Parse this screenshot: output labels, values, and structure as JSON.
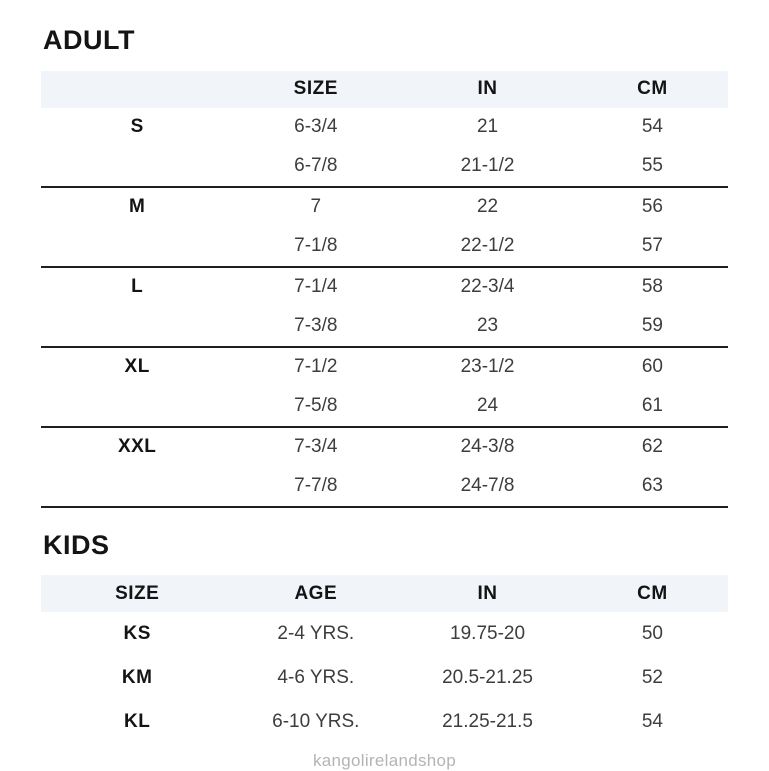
{
  "page": {
    "footer": "kangolirelandshop"
  },
  "colors": {
    "header_band_bg": "#f1f5f9",
    "heading_text": "#141414",
    "body_text": "#3d3d3d",
    "group_divider": "#1f1f1f",
    "footer_text": "#b4b4b4"
  },
  "adult": {
    "title": "ADULT",
    "columns": [
      "",
      "SIZE",
      "IN",
      "CM"
    ],
    "groups": [
      {
        "label": "S",
        "rows": [
          [
            "6-3/4",
            "21",
            "54"
          ],
          [
            "6-7/8",
            "21-1/2",
            "55"
          ]
        ]
      },
      {
        "label": "M",
        "rows": [
          [
            "7",
            "22",
            "56"
          ],
          [
            "7-1/8",
            "22-1/2",
            "57"
          ]
        ]
      },
      {
        "label": "L",
        "rows": [
          [
            "7-1/4",
            "22-3/4",
            "58"
          ],
          [
            "7-3/8",
            "23",
            "59"
          ]
        ]
      },
      {
        "label": "XL",
        "rows": [
          [
            "7-1/2",
            "23-1/2",
            "60"
          ],
          [
            "7-5/8",
            "24",
            "61"
          ]
        ]
      },
      {
        "label": "XXL",
        "rows": [
          [
            "7-3/4",
            "24-3/8",
            "62"
          ],
          [
            "7-7/8",
            "24-7/8",
            "63"
          ]
        ]
      }
    ]
  },
  "kids": {
    "title": "KIDS",
    "columns": [
      "SIZE",
      "AGE",
      "IN",
      "CM"
    ],
    "rows": [
      {
        "size": "KS",
        "age": "2-4 YRS.",
        "in": "19.75-20",
        "cm": "50"
      },
      {
        "size": "KM",
        "age": "4-6 YRS.",
        "in": "20.5-21.25",
        "cm": "52"
      },
      {
        "size": "KL",
        "age": "6-10 YRS.",
        "in": "21.25-21.5",
        "cm": "54"
      }
    ]
  }
}
